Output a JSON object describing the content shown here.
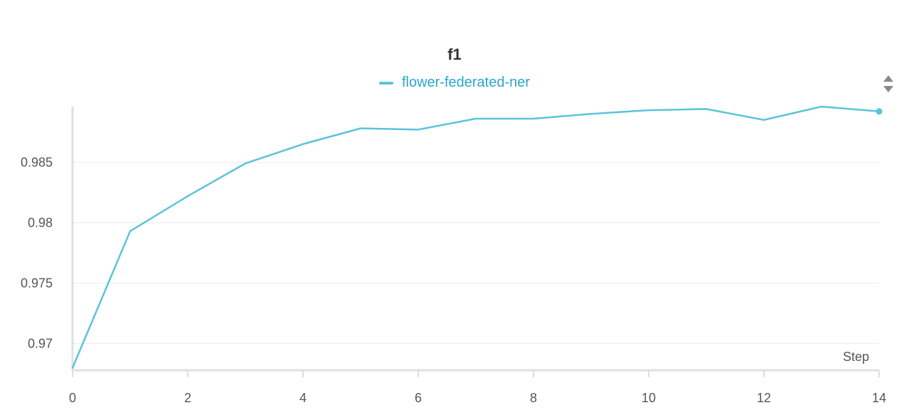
{
  "chart_data": {
    "type": "line",
    "title": "f1",
    "xlabel": "Step",
    "ylabel": "",
    "xlim": [
      0,
      14
    ],
    "ylim": [
      0.9678,
      0.9896
    ],
    "xticks": [
      0,
      2,
      4,
      6,
      8,
      10,
      12,
      14
    ],
    "yticks": [
      0.97,
      0.975,
      0.98,
      0.985
    ],
    "ytick_labels": [
      "0.97",
      "0.975",
      "0.98",
      "0.985"
    ],
    "grid": true,
    "legend_position": "top-center",
    "series": [
      {
        "name": "flower-federated-ner",
        "color": "#5bc4d8",
        "x": [
          0,
          1,
          2,
          3,
          4,
          5,
          6,
          7,
          8,
          9,
          10,
          11,
          12,
          13,
          14
        ],
        "values": [
          0.968,
          0.9793,
          0.9822,
          0.9849,
          0.9865,
          0.9878,
          0.9877,
          0.9886,
          0.9886,
          0.989,
          0.9893,
          0.9894,
          0.9885,
          0.9896,
          0.9892
        ]
      }
    ]
  },
  "ui": {
    "scroll_control_icon": "up-down-arrows-icon"
  }
}
